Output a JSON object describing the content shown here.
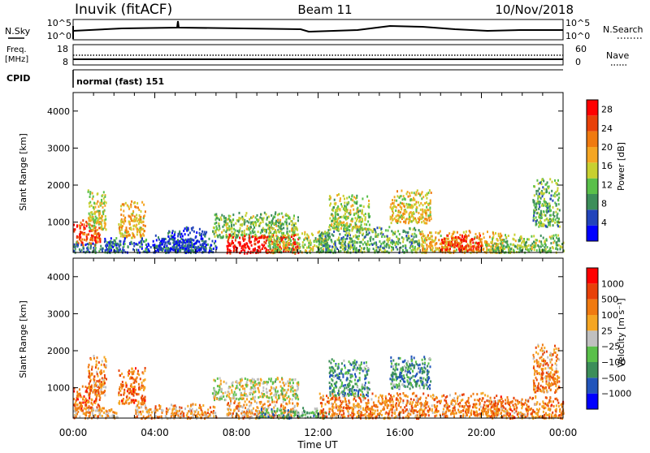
{
  "header": {
    "station": "Inuvik (fitACF)",
    "beam": "Beam 11",
    "date": "10/Nov/2018"
  },
  "summary_panel": {
    "nsky_label": "N.Sky",
    "nsky_ticks": [
      "10^5",
      "10^0"
    ],
    "nsearch_label": "N.Search",
    "nsearch_ticks": [
      "10^5",
      "10^0"
    ],
    "freq_label_line1": "Freq.",
    "freq_label_line2": "[MHz]",
    "freq_ticks": [
      "18",
      "8"
    ],
    "nave_label": "Nave",
    "nave_ticks": [
      "60",
      "0"
    ],
    "cpid_label": "CPID",
    "cpid_text": "normal (fast) 151"
  },
  "colors": {
    "power_scale": [
      "#0000ff",
      "#2244bb",
      "#3c8e5a",
      "#5ac04a",
      "#c8d030",
      "#f5a623",
      "#f07a10",
      "#e84008",
      "#ff0000"
    ],
    "velocity_scale": [
      "#0000ff",
      "#2255bb",
      "#3c8e5a",
      "#5ac04a",
      "#c0c0c0",
      "#f5a623",
      "#f07a10",
      "#e84008",
      "#ff0000"
    ]
  },
  "chart_data": [
    {
      "type": "heatmap",
      "name": "power",
      "ylabel": "Slant Range [km]",
      "xlabel": "",
      "ylim": [
        180,
        4500
      ],
      "xlim": [
        0,
        24
      ],
      "yticks": [
        1000,
        2000,
        3000,
        4000
      ],
      "xticks": [
        "00:00",
        "04:00",
        "08:00",
        "12:00",
        "16:00",
        "20:00",
        "00:00"
      ],
      "colorbar": {
        "label": "Power [dB]",
        "ticks": [
          "4",
          "8",
          "12",
          "16",
          "20",
          "24",
          "28"
        ],
        "range": [
          0,
          30
        ]
      },
      "regions": [
        {
          "t0": 0.0,
          "t1": 1.3,
          "r0": 400,
          "r1": 1100,
          "level": 0.8
        },
        {
          "t0": 0.0,
          "t1": 2.2,
          "r0": 200,
          "r1": 500,
          "level": 0.25
        },
        {
          "t0": 0.7,
          "t1": 1.6,
          "r0": 800,
          "r1": 1900,
          "level": 0.5
        },
        {
          "t0": 2.2,
          "t1": 3.5,
          "r0": 600,
          "r1": 1600,
          "level": 0.6
        },
        {
          "t0": 1.5,
          "t1": 7.0,
          "r0": 200,
          "r1": 600,
          "level": 0.2
        },
        {
          "t0": 4.0,
          "t1": 6.5,
          "r0": 250,
          "r1": 900,
          "level": 0.15
        },
        {
          "t0": 6.8,
          "t1": 11.0,
          "r0": 600,
          "r1": 1300,
          "level": 0.4
        },
        {
          "t0": 7.5,
          "t1": 11.0,
          "r0": 180,
          "r1": 700,
          "level": 0.95
        },
        {
          "t0": 9.5,
          "t1": 12.5,
          "r0": 200,
          "r1": 800,
          "level": 0.45
        },
        {
          "t0": 12.0,
          "t1": 17.0,
          "r0": 200,
          "r1": 900,
          "level": 0.35
        },
        {
          "t0": 12.5,
          "t1": 14.5,
          "r0": 800,
          "r1": 1800,
          "level": 0.45
        },
        {
          "t0": 15.5,
          "t1": 17.5,
          "r0": 1000,
          "r1": 1900,
          "level": 0.55
        },
        {
          "t0": 17.0,
          "t1": 21.0,
          "r0": 200,
          "r1": 800,
          "level": 0.6
        },
        {
          "t0": 18.0,
          "t1": 20.0,
          "r0": 250,
          "r1": 700,
          "level": 0.85
        },
        {
          "t0": 20.5,
          "t1": 24.0,
          "r0": 200,
          "r1": 700,
          "level": 0.4
        },
        {
          "t0": 22.5,
          "t1": 23.8,
          "r0": 900,
          "r1": 2200,
          "level": 0.35
        }
      ]
    },
    {
      "type": "heatmap",
      "name": "velocity",
      "ylabel": "Slant Range [km]",
      "xlabel": "Time UT",
      "ylim": [
        180,
        4500
      ],
      "xlim": [
        0,
        24
      ],
      "yticks": [
        1000,
        2000,
        3000,
        4000
      ],
      "xticks": [
        "00:00",
        "04:00",
        "08:00",
        "12:00",
        "16:00",
        "20:00",
        "00:00"
      ],
      "colorbar": {
        "label": "Velocity [m s⁻¹]",
        "ticks": [
          "1000",
          "500",
          "100",
          "25",
          "−25",
          "−100",
          "−500",
          "−1000"
        ]
      },
      "regions": [
        {
          "t0": 0.0,
          "t1": 1.3,
          "r0": 400,
          "r1": 1100,
          "level": 0.75
        },
        {
          "t0": 0.0,
          "t1": 2.2,
          "r0": 200,
          "r1": 500,
          "level": 0.65
        },
        {
          "t0": 0.7,
          "t1": 1.6,
          "r0": 800,
          "r1": 1900,
          "level": 0.7
        },
        {
          "t0": 2.2,
          "t1": 3.5,
          "r0": 600,
          "r1": 1600,
          "level": 0.75
        },
        {
          "t0": 3.0,
          "t1": 7.0,
          "r0": 200,
          "r1": 600,
          "level": 0.65
        },
        {
          "t0": 6.8,
          "t1": 11.0,
          "r0": 700,
          "r1": 1300,
          "level": 0.5
        },
        {
          "t0": 7.5,
          "t1": 11.0,
          "r0": 200,
          "r1": 700,
          "level": 0.65
        },
        {
          "t0": 9.0,
          "t1": 12.5,
          "r0": 200,
          "r1": 500,
          "level": 0.35
        },
        {
          "t0": 12.0,
          "t1": 17.0,
          "r0": 200,
          "r1": 900,
          "level": 0.7
        },
        {
          "t0": 12.5,
          "t1": 14.5,
          "r0": 800,
          "r1": 1800,
          "level": 0.3
        },
        {
          "t0": 15.5,
          "t1": 17.5,
          "r0": 1000,
          "r1": 1900,
          "level": 0.3
        },
        {
          "t0": 17.0,
          "t1": 21.0,
          "r0": 250,
          "r1": 900,
          "level": 0.7
        },
        {
          "t0": 20.5,
          "t1": 24.0,
          "r0": 200,
          "r1": 800,
          "level": 0.72
        },
        {
          "t0": 22.5,
          "t1": 23.8,
          "r0": 900,
          "r1": 2200,
          "level": 0.7
        }
      ]
    }
  ]
}
